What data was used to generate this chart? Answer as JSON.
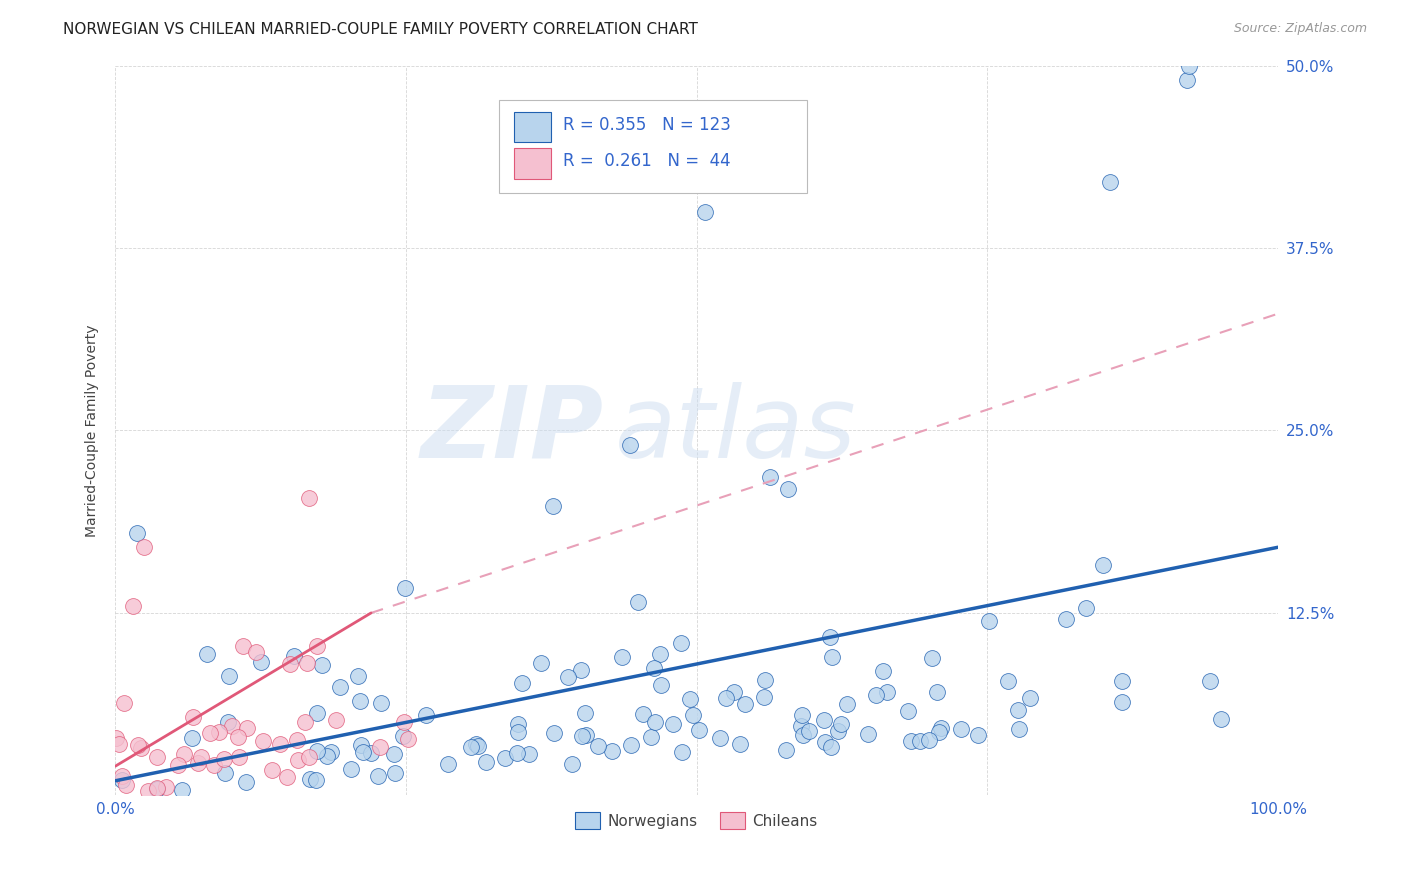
{
  "title": "NORWEGIAN VS CHILEAN MARRIED-COUPLE FAMILY POVERTY CORRELATION CHART",
  "source": "Source: ZipAtlas.com",
  "ylabel": "Married-Couple Family Poverty",
  "xlim": [
    0,
    1.0
  ],
  "ylim": [
    0,
    0.5
  ],
  "yticks": [
    0.0,
    0.125,
    0.25,
    0.375,
    0.5
  ],
  "yticklabels_right": [
    "",
    "12.5%",
    "25.0%",
    "37.5%",
    "50.0%"
  ],
  "norwegian_R": 0.355,
  "norwegian_N": 123,
  "chilean_R": 0.261,
  "chilean_N": 44,
  "norwegian_color": "#b8d4ed",
  "chilean_color": "#f5c0d0",
  "norwegian_line_color": "#2060b0",
  "chilean_line_color": "#e05878",
  "chilean_dash_color": "#e8a0b8",
  "watermark_zip": "ZIP",
  "watermark_atlas": "atlas",
  "background_color": "#ffffff",
  "legend_label_norwegian": "Norwegians",
  "legend_label_chilean": "Chileans",
  "title_fontsize": 11,
  "axis_label_fontsize": 10,
  "tick_fontsize": 11
}
